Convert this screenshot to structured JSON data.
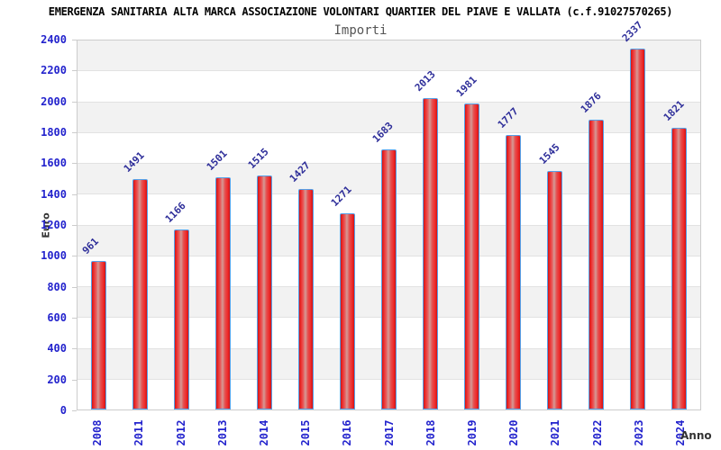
{
  "title": "EMERGENZA SANITARIA ALTA MARCA ASSOCIAZIONE VOLONTARI QUARTIER DEL PIAVE E VALLATA (c.f.91027570265)",
  "subtitle": "Importi",
  "chart_data": {
    "type": "bar",
    "title": "Importi",
    "xlabel": "Anno",
    "ylabel": "Euro",
    "categories": [
      "2008",
      "2011",
      "2012",
      "2013",
      "2014",
      "2015",
      "2016",
      "2017",
      "2018",
      "2019",
      "2020",
      "2021",
      "2022",
      "2023",
      "2024"
    ],
    "values": [
      961,
      1491,
      1166,
      1501,
      1515,
      1427,
      1271,
      1683,
      2013,
      1981,
      1777,
      1545,
      1876,
      2337,
      1821
    ],
    "ylim": [
      0,
      2400
    ],
    "ytick_step": 200,
    "grid": true,
    "legend": false,
    "background_bands": "alternating gray/white every 200 starting gray at top"
  },
  "palette": {
    "page_bg": "#ffffff",
    "title_color": "#000000",
    "subtitle_color": "#555555",
    "tick_label": "#2323cd",
    "value_label": "#2d2d99",
    "axis_label": "#333333",
    "bar_border": "#55a0e8",
    "bar_red": "#ee2c2c",
    "bar_highlight": "#d49a96",
    "band_gray": "#f2f2f2",
    "band_white": "#ffffff",
    "grid_line": "#e2e2e2",
    "plot_border": "#cccccc"
  }
}
